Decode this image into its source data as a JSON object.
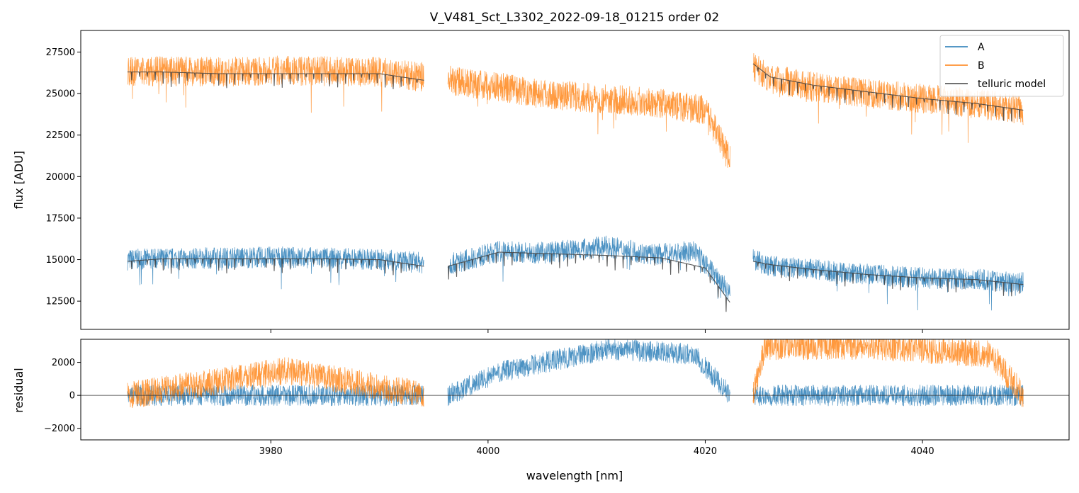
{
  "chart_data": {
    "type": "line",
    "title": "V_V481_Sct_L3302_2022-09-18_01215  order 02",
    "xlabel": "wavelength [nm]",
    "x_ticks": [
      3980,
      4000,
      4020,
      4040
    ],
    "x_tick_labels": [
      "3980",
      "4000",
      "4020",
      "4040"
    ],
    "xlim": [
      3962.5,
      4053.5
    ],
    "colors": {
      "A": "#1f77b4",
      "B": "#ff7f0e",
      "telluric": "#404040"
    },
    "panels": [
      {
        "name": "flux",
        "ylabel": "flux [ADU]",
        "ylim": [
          10800,
          28800
        ],
        "y_ticks": [
          12500,
          15000,
          17500,
          20000,
          22500,
          25000,
          27500
        ],
        "y_tick_labels": [
          "12500",
          "15000",
          "17500",
          "20000",
          "22500",
          "25000",
          "27500"
        ],
        "legend": {
          "position": "upper right",
          "entries": [
            "A",
            "B",
            "telluric model"
          ]
        },
        "series": [
          {
            "name": "A",
            "segments": [
              {
                "x": [
                  3966.8,
                  3970,
                  3975,
                  3980,
                  3985,
                  3990,
                  3994.1
                ],
                "y": [
                  15000,
                  15050,
                  15100,
                  15150,
                  15100,
                  15000,
                  14800
                ]
              },
              {
                "x": [
                  3996.3,
                  4001,
                  4005,
                  4011,
                  4015,
                  4019,
                  4022.3
                ],
                "y": [
                  14700,
                  15500,
                  15400,
                  15800,
                  15300,
                  15500,
                  13000
                ]
              },
              {
                "x": [
                  4024.4,
                  4026,
                  4030,
                  4035,
                  4040,
                  4045,
                  4049.3
                ],
                "y": [
                  15000,
                  14600,
                  14400,
                  14100,
                  13900,
                  13800,
                  13600
                ]
              }
            ]
          },
          {
            "name": "B",
            "segments": [
              {
                "x": [
                  3966.8,
                  3970,
                  3975,
                  3980,
                  3985,
                  3990,
                  3994.1
                ],
                "y": [
                  26300,
                  26350,
                  26300,
                  26400,
                  26350,
                  26300,
                  26000
                ]
              },
              {
                "x": [
                  3996.3,
                  4000,
                  4005,
                  4010,
                  4015,
                  4020,
                  4022.3
                ],
                "y": [
                  25800,
                  25500,
                  25000,
                  24700,
                  24500,
                  24000,
                  21000
                ]
              },
              {
                "x": [
                  4024.4,
                  4026,
                  4030,
                  4035,
                  4040,
                  4045,
                  4049.3
                ],
                "y": [
                  26600,
                  25900,
                  25400,
                  25000,
                  24700,
                  24400,
                  24000
                ]
              }
            ]
          },
          {
            "name": "telluric model",
            "segments": [
              {
                "x": [
                  3966.8,
                  3970,
                  3975,
                  3980,
                  3985,
                  3990,
                  3994.1
                ],
                "y": [
                  14900,
                  15050,
                  15050,
                  15050,
                  15050,
                  15000,
                  14600
                ]
              },
              {
                "x": [
                  3996.3,
                  4001,
                  4006,
                  4011,
                  4016,
                  4020,
                  4022.3
                ],
                "y": [
                  14600,
                  15450,
                  15350,
                  15250,
                  15100,
                  14500,
                  12400
                ]
              },
              {
                "x": [
                  4024.4,
                  4026,
                  4030,
                  4035,
                  4040,
                  4045,
                  4049.3
                ],
                "y": [
                  14900,
                  14700,
                  14400,
                  14100,
                  13900,
                  13800,
                  13500
                ]
              },
              {
                "x": [
                  3966.8,
                  3970,
                  3975,
                  3980,
                  3985,
                  3990,
                  3994.1
                ],
                "y": [
                  26300,
                  26300,
                  26200,
                  26200,
                  26200,
                  26200,
                  25800
                ]
              },
              {
                "x": [
                  4024.4,
                  4026,
                  4030,
                  4035,
                  4040,
                  4045,
                  4049.3
                ],
                "y": [
                  26800,
                  26000,
                  25500,
                  25100,
                  24700,
                  24400,
                  24000
                ]
              }
            ]
          }
        ]
      },
      {
        "name": "residual",
        "ylabel": "residual",
        "ylim": [
          -2700,
          3400
        ],
        "y_ticks": [
          -2000,
          0,
          2000
        ],
        "y_tick_labels": [
          "−2000",
          "0",
          "2000"
        ],
        "series": [
          {
            "name": "A",
            "segments": [
              {
                "x": [
                  3966.8,
                  3980,
                  3994.1
                ],
                "y": [
                  0,
                  0,
                  0
                ]
              },
              {
                "x": [
                  3996.3,
                  4001,
                  4011,
                  4019,
                  4022.3
                ],
                "y": [
                  0,
                  1400,
                  2800,
                  2500,
                  0
                ]
              },
              {
                "x": [
                  4024.4,
                  4030,
                  4040,
                  4049.3
                ],
                "y": [
                  0,
                  0,
                  0,
                  0
                ]
              }
            ]
          },
          {
            "name": "B",
            "segments": [
              {
                "x": [
                  3966.8,
                  3981.5,
                  3994.1
                ],
                "y": [
                  0,
                  1500,
                  0
                ]
              },
              {
                "x": [
                  4024.4,
                  4025.5,
                  4030.7,
                  4035.3,
                  4046.3,
                  4049.3
                ],
                "y": [
                  0,
                  3000,
                  3000,
                  3000,
                  2500,
                  0
                ]
              }
            ]
          }
        ]
      }
    ]
  }
}
